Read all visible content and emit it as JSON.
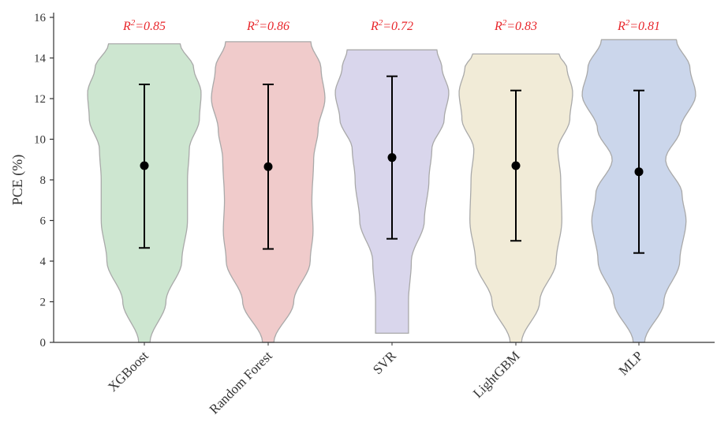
{
  "chart_data": {
    "type": "violin",
    "ylabel": "PCE (%)",
    "xlabel": "",
    "ylim": [
      0,
      16
    ],
    "yticks": [
      0,
      2,
      4,
      6,
      8,
      10,
      12,
      14,
      16
    ],
    "categories": [
      "XGBoost",
      "Random Forest",
      "SVR",
      "LightGBM",
      "MLP"
    ],
    "series": [
      {
        "category": "XGBoost",
        "r2_label": "R",
        "r2_sup": "2",
        "r2_value": "=0.85",
        "color": "#cde6d0",
        "mean": 8.7,
        "error_low": 4.65,
        "error_high": 12.7,
        "range": [
          0,
          14.7
        ],
        "density_profile": [
          [
            0,
            0.1
          ],
          [
            2,
            0.38
          ],
          [
            4,
            0.66
          ],
          [
            6,
            0.76
          ],
          [
            8,
            0.76
          ],
          [
            9.5,
            0.79
          ],
          [
            11,
            0.97
          ],
          [
            12.3,
            1.0
          ],
          [
            13.5,
            0.87
          ],
          [
            14.7,
            0.63
          ]
        ]
      },
      {
        "category": "Random Forest",
        "r2_label": "R",
        "r2_sup": "2",
        "r2_value": "=0.86",
        "color": "#f0cbcb",
        "mean": 8.65,
        "error_low": 4.6,
        "error_high": 12.7,
        "range": [
          0,
          14.8
        ],
        "density_profile": [
          [
            0,
            0.1
          ],
          [
            2,
            0.45
          ],
          [
            4,
            0.74
          ],
          [
            5.5,
            0.79
          ],
          [
            7,
            0.77
          ],
          [
            9,
            0.8
          ],
          [
            10.5,
            0.88
          ],
          [
            12,
            1.0
          ],
          [
            13.5,
            0.93
          ],
          [
            14.8,
            0.75
          ]
        ]
      },
      {
        "category": "SVR",
        "r2_label": "R",
        "r2_sup": "2",
        "r2_value": "=0.72",
        "color": "#d9d6ec",
        "mean": 9.1,
        "error_low": 5.1,
        "error_high": 13.1,
        "range": [
          0.45,
          14.4
        ],
        "density_profile": [
          [
            0.45,
            0.29
          ],
          [
            2,
            0.29
          ],
          [
            4,
            0.34
          ],
          [
            6,
            0.57
          ],
          [
            8,
            0.65
          ],
          [
            9.5,
            0.7
          ],
          [
            11,
            0.92
          ],
          [
            12.3,
            1.0
          ],
          [
            13.5,
            0.88
          ],
          [
            14.4,
            0.79
          ]
        ]
      },
      {
        "category": "LightGBM",
        "r2_label": "R",
        "r2_sup": "2",
        "r2_value": "=0.83",
        "color": "#f1ebd7",
        "mean": 8.7,
        "error_low": 5.0,
        "error_high": 12.4,
        "range": [
          0,
          14.2
        ],
        "density_profile": [
          [
            0,
            0.1
          ],
          [
            2,
            0.42
          ],
          [
            4,
            0.71
          ],
          [
            6,
            0.81
          ],
          [
            8,
            0.79
          ],
          [
            9.5,
            0.74
          ],
          [
            11,
            0.95
          ],
          [
            12.3,
            1.0
          ],
          [
            13.5,
            0.9
          ],
          [
            14.2,
            0.76
          ]
        ]
      },
      {
        "category": "MLP",
        "r2_label": "R",
        "r2_sup": "2",
        "r2_value": "=0.81",
        "color": "#cbd6eb",
        "mean": 8.4,
        "error_low": 4.4,
        "error_high": 12.4,
        "range": [
          0,
          14.9
        ],
        "density_profile": [
          [
            0,
            0.1
          ],
          [
            2,
            0.44
          ],
          [
            4,
            0.72
          ],
          [
            6,
            0.83
          ],
          [
            7.3,
            0.76
          ],
          [
            9,
            0.47
          ],
          [
            10.5,
            0.73
          ],
          [
            12.2,
            1.0
          ],
          [
            13.5,
            0.9
          ],
          [
            14.9,
            0.66
          ]
        ]
      }
    ]
  }
}
